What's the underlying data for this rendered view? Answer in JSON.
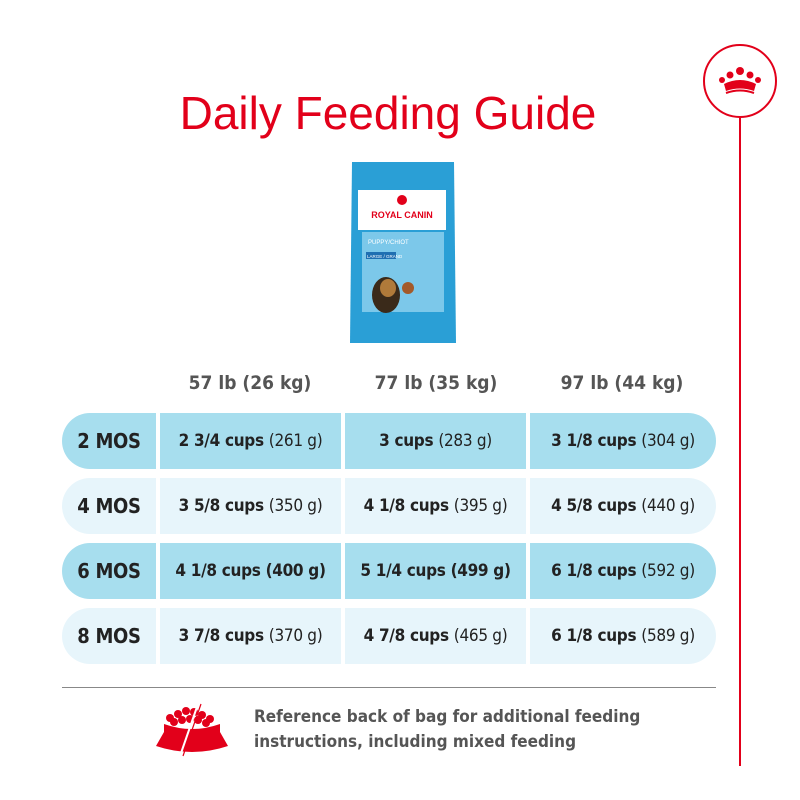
{
  "title": "Daily Feeding Guide",
  "brand": {
    "logo_text": "ROYAL CANIN",
    "product": "PUPPY/CHIOT",
    "size": "LARGE / GRAND",
    "accent": "#e2001a"
  },
  "columns": [
    "57 lb (26 kg)",
    "77 lb (35 kg)",
    "97 lb (44 kg)"
  ],
  "rows": [
    {
      "age": "2 MOS",
      "cells": [
        {
          "cups": "2 3/4 cups",
          "grams": "(261 g)"
        },
        {
          "cups": "3 cups",
          "grams": "(283 g)"
        },
        {
          "cups": "3 1/8 cups",
          "grams": "(304 g)"
        }
      ]
    },
    {
      "age": "4 MOS",
      "cells": [
        {
          "cups": "3 5/8 cups",
          "grams": "(350 g)"
        },
        {
          "cups": "4 1/8 cups",
          "grams": "(395 g)"
        },
        {
          "cups": "4 5/8 cups",
          "grams": "(440 g)"
        }
      ]
    },
    {
      "age": "6 MOS",
      "cells": [
        {
          "cups": "4 1/8 cups",
          "grams": "(400 g)"
        },
        {
          "cups": "5 1/4 cups",
          "grams": "(499 g)"
        },
        {
          "cups": "6 1/8 cups",
          "grams": "(592 g)"
        }
      ]
    },
    {
      "age": "8 MOS",
      "cells": [
        {
          "cups": "3 7/8 cups",
          "grams": "(370 g)"
        },
        {
          "cups": "4 7/8 cups",
          "grams": "(465 g)"
        },
        {
          "cups": "6 1/8 cups",
          "grams": "(589 g)"
        }
      ]
    }
  ],
  "note": {
    "line1": "Reference back of bag for additional feeding",
    "line2": "instructions, including mixed feeding"
  },
  "icons": {
    "crown": "crown-icon",
    "bowl": "food-bowl-icon"
  }
}
